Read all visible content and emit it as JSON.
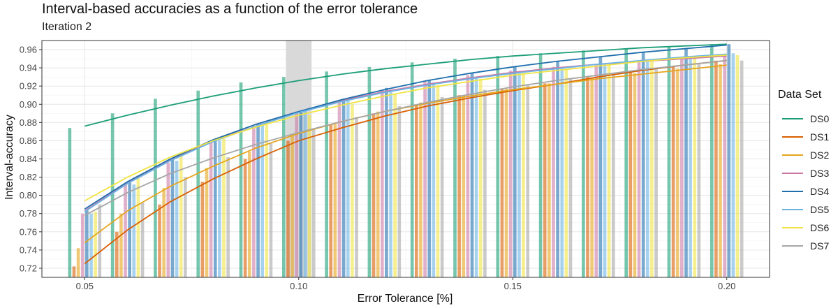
{
  "chart_data": {
    "type": "bar",
    "title": "Interval-based accuracies as a function of the error tolerance",
    "subtitle": "Iteration 2",
    "xlabel": "Error Tolerance [%]",
    "ylabel": "Interval-accuracy",
    "xlim": [
      0.04,
      0.21
    ],
    "ylim": [
      0.71,
      0.97
    ],
    "x_ticks": [
      0.05,
      0.1,
      0.15,
      0.2
    ],
    "x_tick_labels": [
      "0.05",
      "0.10",
      "0.15",
      "0.20"
    ],
    "y_ticks": [
      0.72,
      0.74,
      0.76,
      0.78,
      0.8,
      0.82,
      0.84,
      0.86,
      0.88,
      0.9,
      0.92,
      0.94,
      0.96
    ],
    "y_tick_labels": [
      "0.72",
      "0.74",
      "0.76",
      "0.78",
      "0.80",
      "0.82",
      "0.84",
      "0.86",
      "0.88",
      "0.90",
      "0.92",
      "0.94",
      "0.96"
    ],
    "grid": true,
    "legend": {
      "title": "Data Set",
      "position": "right"
    },
    "highlight_band": {
      "x": 0.1
    },
    "x": [
      0.05,
      0.06,
      0.07,
      0.08,
      0.09,
      0.1,
      0.11,
      0.12,
      0.13,
      0.14,
      0.15,
      0.16,
      0.17,
      0.18,
      0.19,
      0.2
    ],
    "series": [
      {
        "name": "DS0",
        "color": "#1b9e77",
        "values": [
          0.874,
          0.89,
          0.906,
          0.915,
          0.924,
          0.93,
          0.936,
          0.941,
          0.946,
          0.95,
          0.953,
          0.956,
          0.959,
          0.961,
          0.963,
          0.966
        ],
        "fit": [
          0.876,
          0.888,
          0.899,
          0.909,
          0.918,
          0.926,
          0.933,
          0.939,
          0.944,
          0.949,
          0.953,
          0.956,
          0.959,
          0.962,
          0.964,
          0.966
        ]
      },
      {
        "name": "DS1",
        "color": "#d95f02",
        "values": [
          0.722,
          0.76,
          0.79,
          0.815,
          0.84,
          0.86,
          0.878,
          0.89,
          0.9,
          0.91,
          0.917,
          0.923,
          0.93,
          0.936,
          0.942,
          0.948
        ],
        "fit": [
          0.725,
          0.762,
          0.793,
          0.818,
          0.84,
          0.86,
          0.874,
          0.887,
          0.898,
          0.907,
          0.915,
          0.922,
          0.93,
          0.937,
          0.943,
          0.948
        ]
      },
      {
        "name": "DS2",
        "color": "#e6a51c",
        "values": [
          0.742,
          0.78,
          0.808,
          0.83,
          0.848,
          0.866,
          0.88,
          0.892,
          0.902,
          0.91,
          0.917,
          0.923,
          0.929,
          0.934,
          0.939,
          0.944
        ],
        "fit": [
          0.748,
          0.783,
          0.81,
          0.832,
          0.852,
          0.868,
          0.881,
          0.892,
          0.901,
          0.909,
          0.916,
          0.922,
          0.928,
          0.933,
          0.938,
          0.943
        ]
      },
      {
        "name": "DS3",
        "color": "#cc79a7",
        "values": [
          0.78,
          0.812,
          0.836,
          0.858,
          0.876,
          0.892,
          0.905,
          0.916,
          0.926,
          0.932,
          0.937,
          0.941,
          0.944,
          0.947,
          0.95,
          0.953
        ],
        "fit": [
          0.783,
          0.814,
          0.839,
          0.86,
          0.878,
          0.892,
          0.904,
          0.914,
          0.922,
          0.929,
          0.935,
          0.94,
          0.944,
          0.947,
          0.95,
          0.953
        ]
      },
      {
        "name": "DS4",
        "color": "#1f6fad",
        "values": [
          0.784,
          0.815,
          0.84,
          0.86,
          0.878,
          0.892,
          0.906,
          0.918,
          0.926,
          0.934,
          0.941,
          0.947,
          0.952,
          0.957,
          0.961,
          0.966
        ],
        "fit": [
          0.785,
          0.815,
          0.84,
          0.861,
          0.878,
          0.892,
          0.905,
          0.916,
          0.926,
          0.934,
          0.941,
          0.947,
          0.952,
          0.957,
          0.961,
          0.965
        ]
      },
      {
        "name": "DS5",
        "color": "#6cb4e4",
        "values": [
          0.78,
          0.812,
          0.838,
          0.86,
          0.878,
          0.894,
          0.906,
          0.916,
          0.924,
          0.93,
          0.935,
          0.94,
          0.944,
          0.948,
          0.952,
          0.956
        ],
        "fit": [
          0.782,
          0.813,
          0.838,
          0.859,
          0.876,
          0.891,
          0.903,
          0.913,
          0.921,
          0.928,
          0.934,
          0.939,
          0.944,
          0.948,
          0.952,
          0.955
        ]
      },
      {
        "name": "DS6",
        "color": "#f0e442",
        "values": [
          0.782,
          0.822,
          0.845,
          0.862,
          0.878,
          0.888,
          0.9,
          0.911,
          0.921,
          0.928,
          0.934,
          0.939,
          0.943,
          0.947,
          0.951,
          0.954
        ],
        "fit": [
          0.794,
          0.82,
          0.842,
          0.86,
          0.875,
          0.888,
          0.899,
          0.909,
          0.918,
          0.925,
          0.932,
          0.937,
          0.942,
          0.947,
          0.951,
          0.954
        ]
      },
      {
        "name": "DS7",
        "color": "#a6a6a6",
        "values": [
          0.79,
          0.792,
          0.82,
          0.842,
          0.858,
          0.872,
          0.886,
          0.898,
          0.908,
          0.916,
          0.922,
          0.928,
          0.934,
          0.94,
          0.944,
          0.948
        ],
        "fit": [
          0.778,
          0.803,
          0.824,
          0.841,
          0.856,
          0.869,
          0.881,
          0.892,
          0.902,
          0.911,
          0.919,
          0.926,
          0.932,
          0.938,
          0.943,
          0.948
        ]
      }
    ]
  }
}
